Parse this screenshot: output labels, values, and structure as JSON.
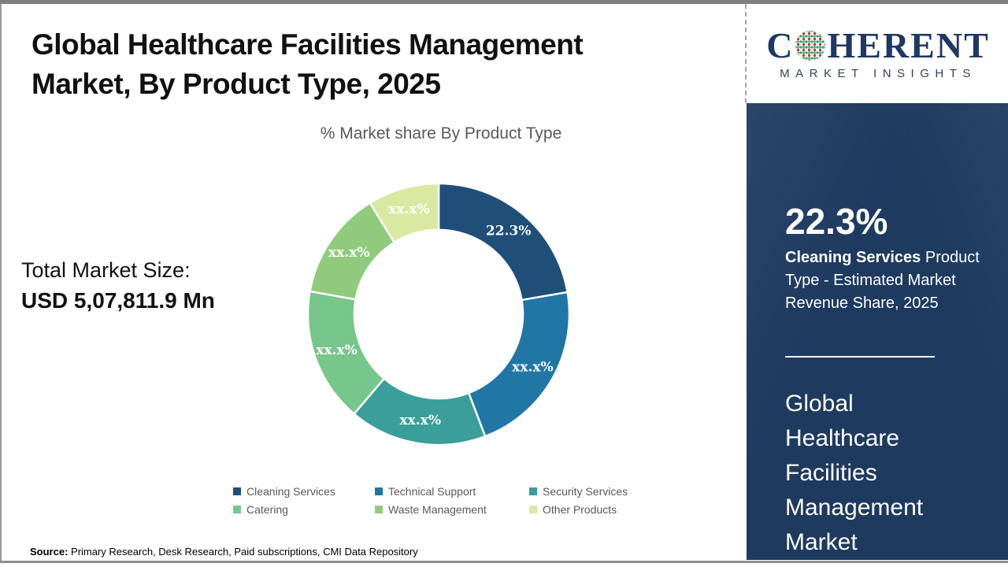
{
  "header": {
    "title_lines": [
      "Global Healthcare Facilities Management",
      "Market, By Product Type, 2025"
    ],
    "subtitle": "% Market share By Product Type"
  },
  "logo": {
    "word_start": "C",
    "word_end": "HERENT",
    "tagline": "MARKET INSIGHTS",
    "brand_navy": "#1f3864"
  },
  "total_market": {
    "label": "Total Market Size:",
    "value": "USD 5,07,811.9 Mn"
  },
  "chart_data": {
    "type": "pie",
    "subtype": "donut",
    "title": "% Market share By Product Type",
    "categories": [
      "Cleaning Services",
      "Technical Support",
      "Security Services",
      "Catering",
      "Waste Management",
      "Other Products"
    ],
    "values": [
      22.3,
      21.9,
      17.0,
      16.6,
      13.4,
      8.8
    ],
    "labels": [
      "22.3%",
      "xx.x%",
      "xx.x%",
      "xx.x%",
      "xx.x%",
      "xx.x%"
    ],
    "colors": [
      "#1F4E79",
      "#2077A6",
      "#3A9E9A",
      "#77C68B",
      "#90CB7D",
      "#D9E9A1"
    ],
    "start_angle_deg": 0,
    "direction": "clockwise",
    "inner_radius_ratio": 0.645,
    "legend_position": "bottom"
  },
  "sidebar": {
    "stat_value": "22.3%",
    "stat_desc_bold": "Cleaning Services",
    "stat_desc_rest": " Product Type - Estimated Market Revenue Share, 2025",
    "market_name_lines": [
      "Global",
      "Healthcare",
      "Facilities",
      "Management",
      "Market"
    ]
  },
  "source": {
    "label": "Source:",
    "text": " Primary Research, Desk Research, Paid subscriptions, CMI Data Repository"
  }
}
